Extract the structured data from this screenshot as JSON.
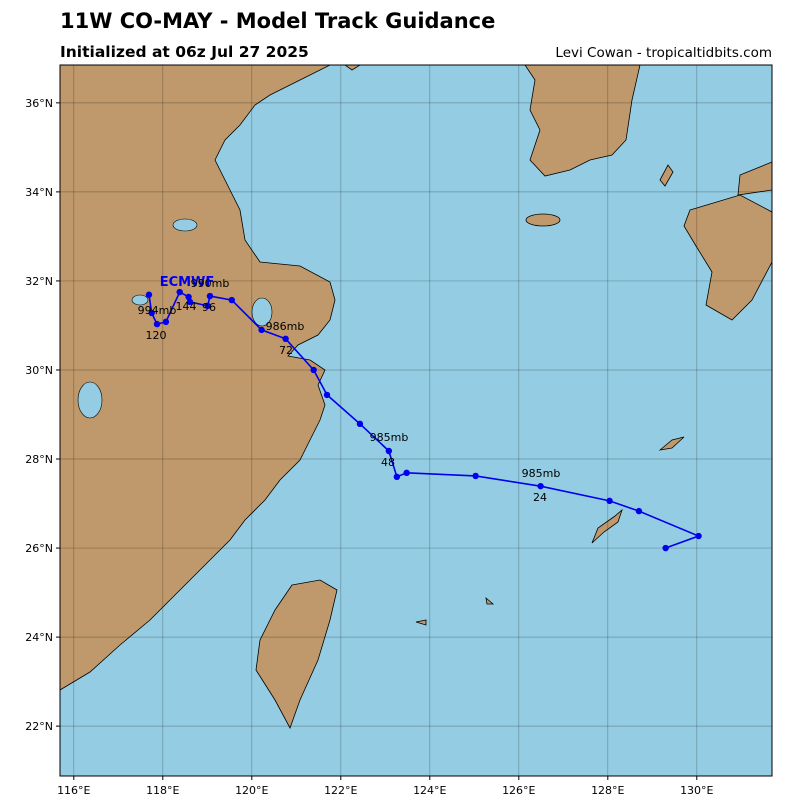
{
  "chart_data": {
    "type": "track",
    "title": "11W CO-MAY - Model Track Guidance",
    "subtitle": "Initialized at 06z Jul 27 2025",
    "credit": "Levi Cowan - tropicaltidbits.com",
    "xlim": [
      115.69,
      131.69
    ],
    "ylim": [
      20.88,
      36.85
    ],
    "xticks": [
      {
        "value": 116,
        "label": "116°E"
      },
      {
        "value": 118,
        "label": "118°E"
      },
      {
        "value": 120,
        "label": "120°E"
      },
      {
        "value": 122,
        "label": "122°E"
      },
      {
        "value": 124,
        "label": "124°E"
      },
      {
        "value": 126,
        "label": "126°E"
      },
      {
        "value": 128,
        "label": "128°E"
      },
      {
        "value": 130,
        "label": "130°E"
      }
    ],
    "yticks": [
      {
        "value": 22,
        "label": "22°N"
      },
      {
        "value": 24,
        "label": "24°N"
      },
      {
        "value": 26,
        "label": "26°N"
      },
      {
        "value": 28,
        "label": "28°N"
      },
      {
        "value": 30,
        "label": "30°N"
      },
      {
        "value": 32,
        "label": "32°N"
      },
      {
        "value": 34,
        "label": "34°N"
      },
      {
        "value": 36,
        "label": "36°N"
      }
    ],
    "grid": true,
    "series": [
      {
        "name": "ECMWF",
        "color": "#0000ee",
        "x": [
          129.3,
          130.04,
          128.7,
          128.04,
          126.49,
          125.03,
          123.48,
          123.26,
          123.08,
          122.43,
          121.69,
          121.39,
          120.76,
          120.22,
          119.55,
          119.06,
          119.01,
          118.61,
          118.58,
          118.38,
          118.07,
          117.87,
          117.75,
          117.69
        ],
        "values": [
          26.0,
          26.27,
          26.83,
          27.06,
          27.39,
          27.62,
          27.69,
          27.6,
          28.18,
          28.79,
          29.44,
          30.0,
          30.7,
          30.9,
          31.57,
          31.66,
          31.44,
          31.53,
          31.64,
          31.75,
          31.08,
          31.03,
          31.28,
          31.69
        ]
      }
    ],
    "annotations": [
      "990mb",
      "144",
      "96",
      "994mb",
      "120",
      "986mb",
      "72",
      "985mb",
      "48",
      "985mb",
      "24"
    ]
  }
}
